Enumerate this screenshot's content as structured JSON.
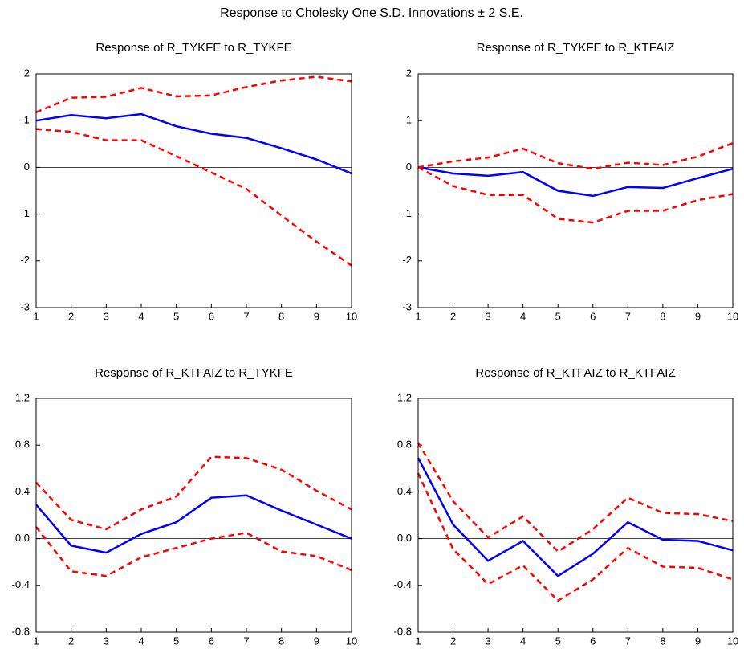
{
  "title": "Response to Cholesky One S.D. Innovations ± 2 S.E.",
  "chart_data": [
    {
      "type": "line",
      "title": "Response of R_TYKFE to R_TYKFE",
      "x": [
        1,
        2,
        3,
        4,
        5,
        6,
        7,
        8,
        9,
        10
      ],
      "xlim": [
        1,
        10
      ],
      "xticks": [
        1,
        2,
        3,
        4,
        5,
        6,
        7,
        8,
        9,
        10
      ],
      "ylim": [
        -3,
        2
      ],
      "yticks": [
        -3,
        -2,
        -1,
        0,
        1,
        2
      ],
      "hline": 0,
      "series": [
        {
          "color": "#0000ff",
          "dash": false,
          "values": [
            1.0,
            1.12,
            1.05,
            1.14,
            0.88,
            0.72,
            0.63,
            0.41,
            0.17,
            -0.13
          ]
        },
        {
          "color": "#ff0000",
          "dash": true,
          "values": [
            1.18,
            1.49,
            1.51,
            1.7,
            1.52,
            1.54,
            1.72,
            1.86,
            1.94,
            1.84
          ]
        },
        {
          "color": "#ff0000",
          "dash": true,
          "values": [
            0.82,
            0.76,
            0.58,
            0.58,
            0.24,
            -0.11,
            -0.46,
            -1.03,
            -1.59,
            -2.1
          ]
        }
      ]
    },
    {
      "type": "line",
      "title": "Response of R_TYKFE to R_KTFAIZ",
      "x": [
        1,
        2,
        3,
        4,
        5,
        6,
        7,
        8,
        9,
        10
      ],
      "xlim": [
        1,
        10
      ],
      "xticks": [
        1,
        2,
        3,
        4,
        5,
        6,
        7,
        8,
        9,
        10
      ],
      "ylim": [
        -3,
        2
      ],
      "yticks": [
        -3,
        -2,
        -1,
        0,
        1,
        2
      ],
      "hline": 0,
      "series": [
        {
          "color": "#0000ff",
          "dash": false,
          "values": [
            0,
            -0.13,
            -0.18,
            -0.1,
            -0.5,
            -0.61,
            -0.42,
            -0.44,
            -0.23,
            -0.03
          ]
        },
        {
          "color": "#ff0000",
          "dash": true,
          "values": [
            0,
            0.13,
            0.21,
            0.4,
            0.09,
            -0.03,
            0.1,
            0.05,
            0.23,
            0.52
          ]
        },
        {
          "color": "#ff0000",
          "dash": true,
          "values": [
            0,
            -0.4,
            -0.59,
            -0.59,
            -1.1,
            -1.18,
            -0.93,
            -0.93,
            -0.7,
            -0.57
          ]
        }
      ]
    },
    {
      "type": "line",
      "title": "Response of R_KTFAIZ to R_TYKFE",
      "x": [
        1,
        2,
        3,
        4,
        5,
        6,
        7,
        8,
        9,
        10
      ],
      "xlim": [
        1,
        10
      ],
      "xticks": [
        1,
        2,
        3,
        4,
        5,
        6,
        7,
        8,
        9,
        10
      ],
      "ylim": [
        -0.8,
        1.2
      ],
      "yticks": [
        -0.8,
        -0.4,
        {
          "value": 0,
          "label": "0.0"
        },
        0.4,
        0.8,
        1.2
      ],
      "hline": 0,
      "series": [
        {
          "color": "#0000ff",
          "dash": false,
          "values": [
            0.29,
            -0.06,
            -0.12,
            0.04,
            0.14,
            0.35,
            0.37,
            0.24,
            0.12,
            0.0
          ]
        },
        {
          "color": "#ff0000",
          "dash": true,
          "values": [
            0.48,
            0.16,
            0.08,
            0.25,
            0.36,
            0.7,
            0.69,
            0.59,
            0.41,
            0.25
          ]
        },
        {
          "color": "#ff0000",
          "dash": true,
          "values": [
            0.1,
            -0.28,
            -0.32,
            -0.16,
            -0.08,
            0.0,
            0.05,
            -0.11,
            -0.15,
            -0.27
          ]
        }
      ]
    },
    {
      "type": "line",
      "title": "Response of R_KTFAIZ to R_KTFAIZ",
      "x": [
        1,
        2,
        3,
        4,
        5,
        6,
        7,
        8,
        9,
        10
      ],
      "xlim": [
        1,
        10
      ],
      "xticks": [
        1,
        2,
        3,
        4,
        5,
        6,
        7,
        8,
        9,
        10
      ],
      "ylim": [
        -0.8,
        1.2
      ],
      "yticks": [
        -0.8,
        -0.4,
        {
          "value": 0,
          "label": "0.0"
        },
        0.4,
        0.8,
        1.2
      ],
      "hline": 0,
      "series": [
        {
          "color": "#0000ff",
          "dash": false,
          "values": [
            0.69,
            0.12,
            -0.19,
            -0.02,
            -0.32,
            -0.13,
            0.14,
            -0.01,
            -0.02,
            -0.1
          ]
        },
        {
          "color": "#ff0000",
          "dash": true,
          "values": [
            0.82,
            0.32,
            0.01,
            0.19,
            -0.11,
            0.08,
            0.35,
            0.22,
            0.21,
            0.15
          ]
        },
        {
          "color": "#ff0000",
          "dash": true,
          "values": [
            0.56,
            -0.09,
            -0.39,
            -0.23,
            -0.53,
            -0.35,
            -0.08,
            -0.24,
            -0.25,
            -0.35
          ]
        }
      ]
    }
  ]
}
